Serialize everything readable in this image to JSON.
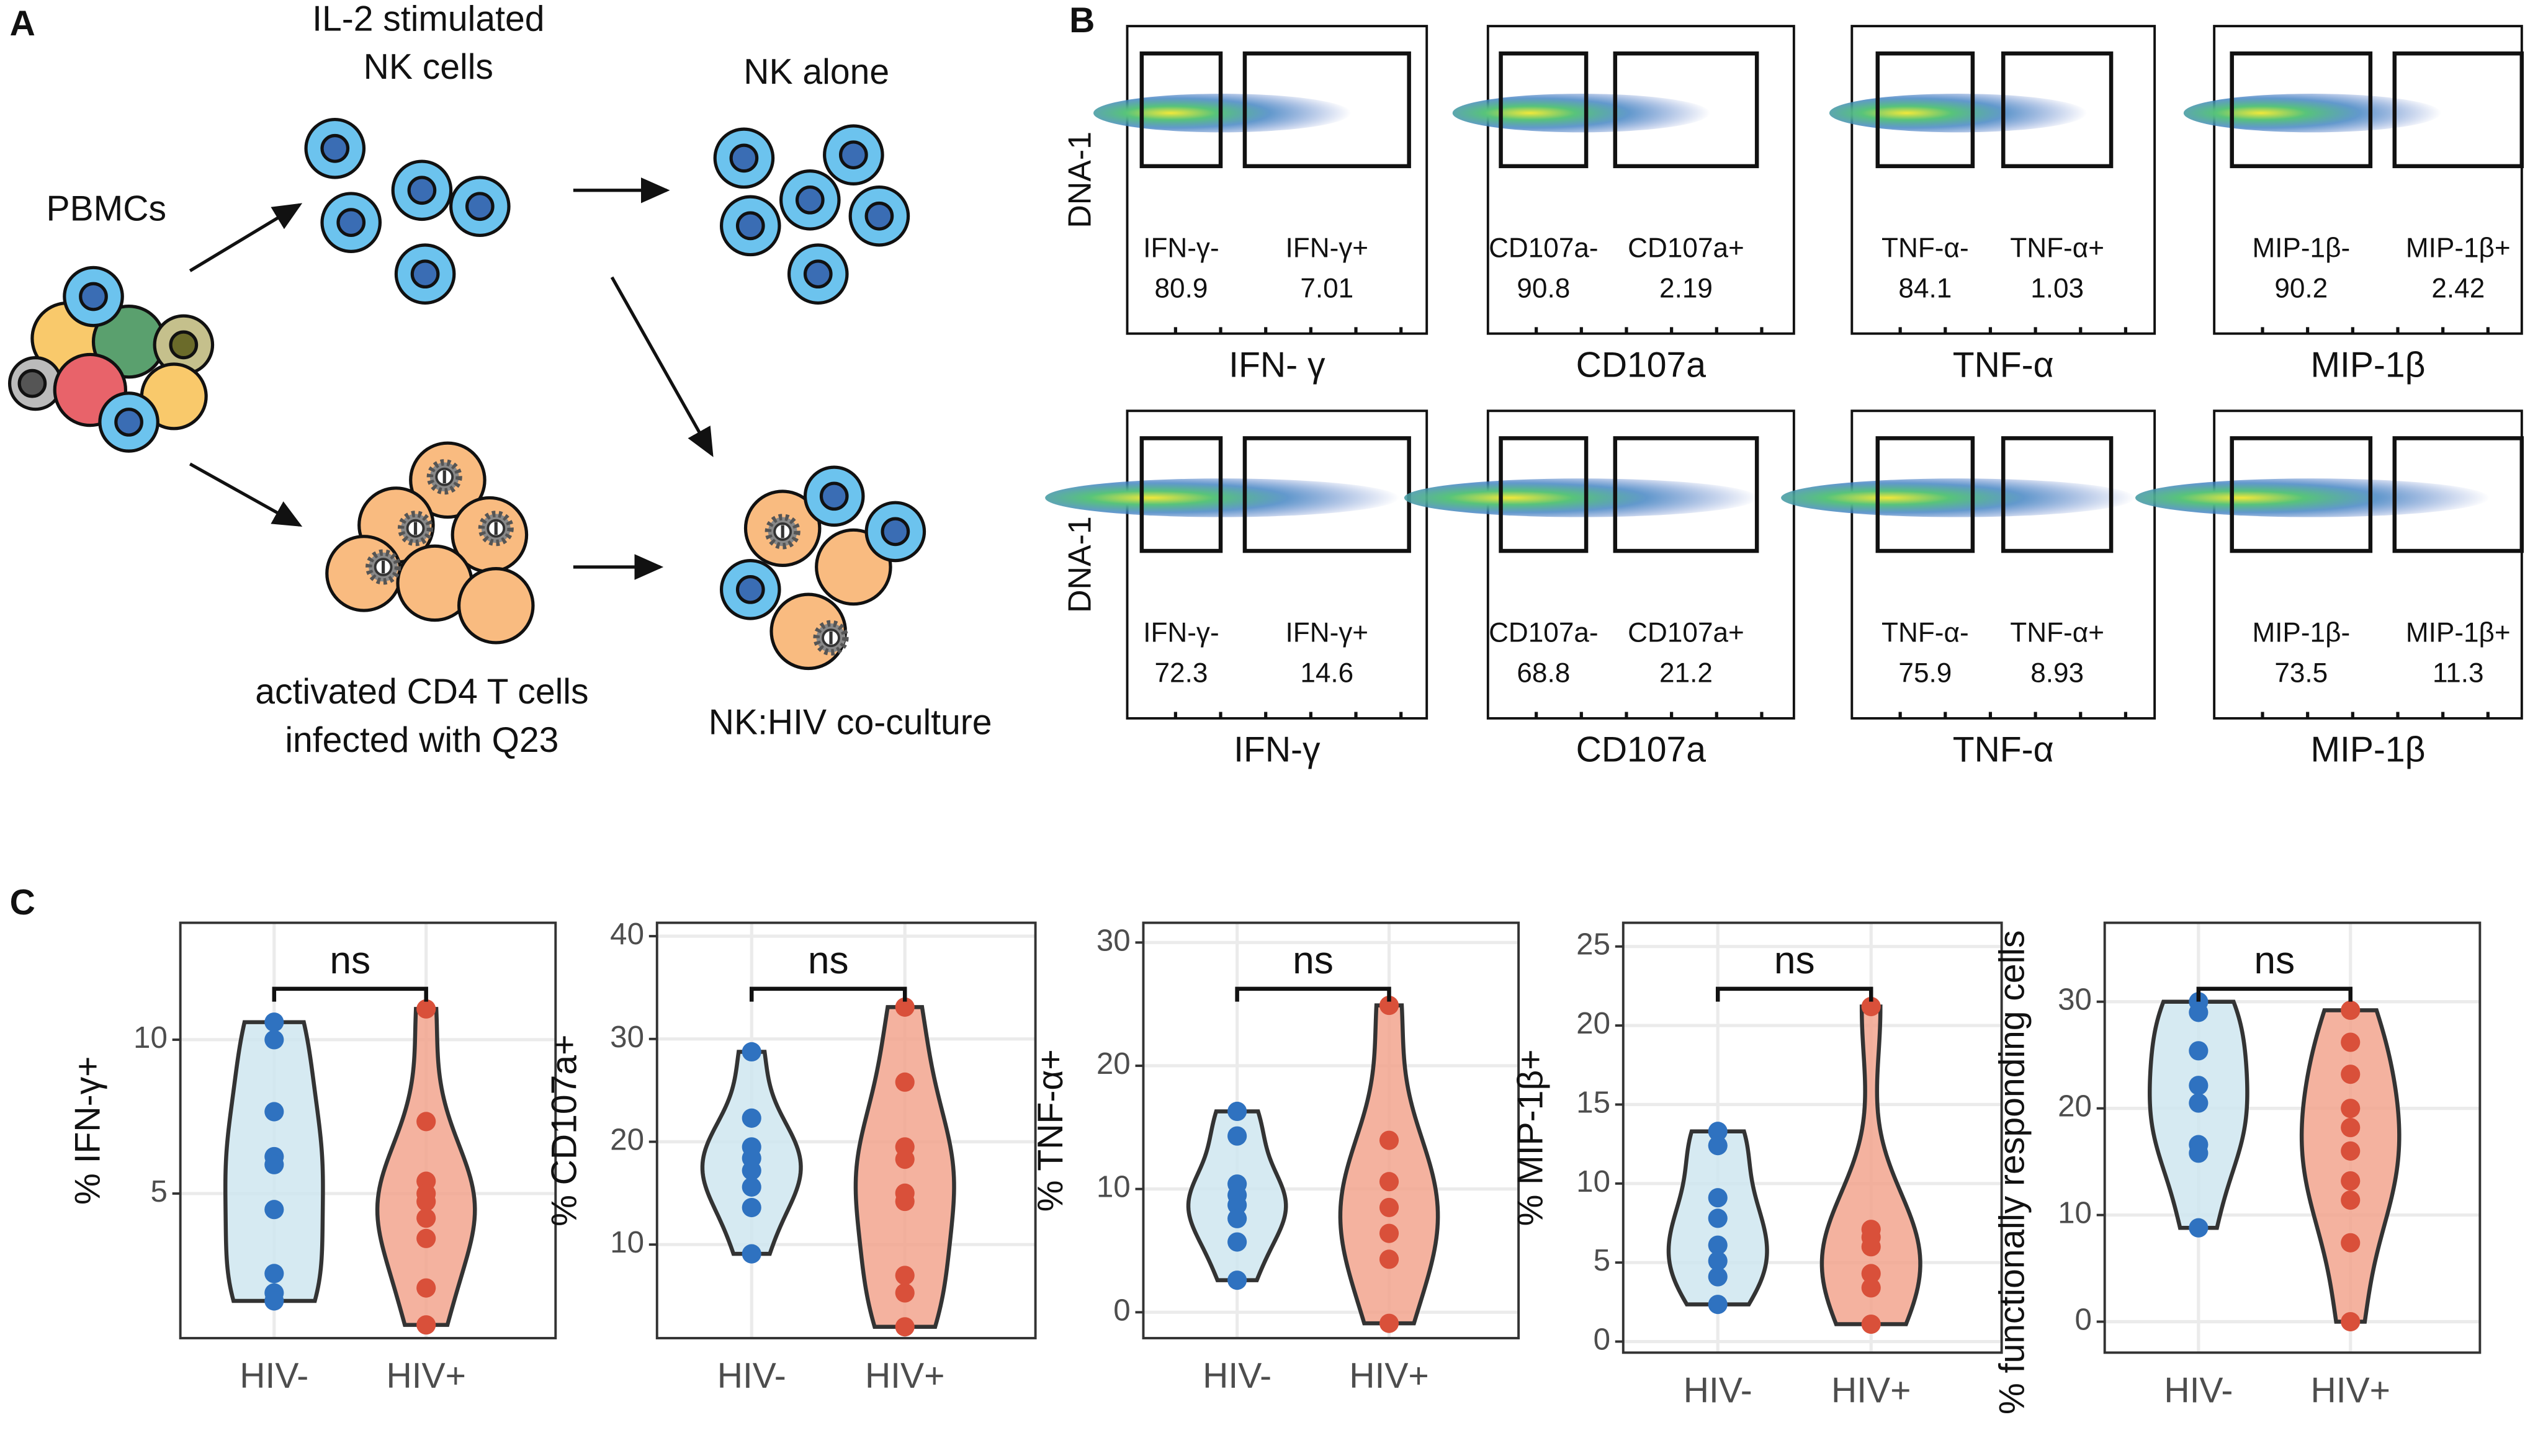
{
  "panel_labels": [
    "A",
    "B",
    "C"
  ],
  "panel_a": {
    "nk_title": [
      "IL-2 stimulated",
      "NK cells"
    ],
    "pbmc": "PBMCs",
    "nk_alone": "NK alone",
    "cd4": [
      "activated CD4 T cells",
      "infected with Q23"
    ],
    "coculture": "NK:HIV co-culture"
  },
  "panel_b": {
    "y_label": "DNA-1",
    "plots": [
      {
        "x_label": "IFN- γ",
        "gates": [
          {
            "name": "IFN-γ-",
            "value": "80.9"
          },
          {
            "name": "IFN-γ+",
            "value": "7.01"
          }
        ]
      },
      {
        "x_label": "CD107a",
        "gates": [
          {
            "name": "CD107a-",
            "value": "90.8"
          },
          {
            "name": "CD107a+",
            "value": "2.19"
          }
        ]
      },
      {
        "x_label": "TNF-α",
        "gates": [
          {
            "name": "TNF-α-",
            "value": "84.1"
          },
          {
            "name": "TNF-α+",
            "value": "1.03"
          }
        ]
      },
      {
        "x_label": "MIP-1β",
        "gates": [
          {
            "name": "MIP-1β-",
            "value": "90.2"
          },
          {
            "name": "MIP-1β+",
            "value": "2.42"
          }
        ]
      },
      {
        "x_label": "IFN-γ",
        "gates": [
          {
            "name": "IFN-γ-",
            "value": "72.3"
          },
          {
            "name": "IFN-γ+",
            "value": "14.6"
          }
        ]
      },
      {
        "x_label": "CD107a",
        "gates": [
          {
            "name": "CD107a-",
            "value": "68.8"
          },
          {
            "name": "CD107a+",
            "value": "21.2"
          }
        ]
      },
      {
        "x_label": "TNF-α",
        "gates": [
          {
            "name": "TNF-α-",
            "value": "75.9"
          },
          {
            "name": "TNF-α+",
            "value": "8.93"
          }
        ]
      },
      {
        "x_label": "MIP-1β",
        "gates": [
          {
            "name": "MIP-1β-",
            "value": "73.5"
          },
          {
            "name": "MIP-1β+",
            "value": "11.3"
          }
        ]
      }
    ]
  },
  "chart_data": [
    {
      "type": "violin",
      "ylabel": "% IFN-γ+",
      "categories": [
        "HIV-",
        "HIV+"
      ],
      "annotation": "ns",
      "grid": true,
      "ylim": [
        0.3,
        13.8
      ],
      "yticks": [
        5,
        10
      ],
      "series": [
        {
          "name": "HIV-",
          "color": "#2f72c0",
          "fill": "#cfe6f0",
          "values": [
            10.57,
            10.0,
            7.66,
            6.2,
            5.94,
            4.48,
            2.4,
            1.77,
            1.51
          ]
        },
        {
          "name": "HIV+",
          "color": "#d9503a",
          "fill": "#f2a58e",
          "values": [
            11.0,
            7.34,
            5.4,
            5.0,
            4.74,
            4.2,
            3.54,
            1.93,
            0.73
          ]
        }
      ]
    },
    {
      "type": "violin",
      "ylabel": "% CD107a+",
      "categories": [
        "HIV-",
        "HIV+"
      ],
      "annotation": "ns",
      "grid": true,
      "ylim": [
        0.9,
        41.3
      ],
      "yticks": [
        10,
        20,
        30,
        40
      ],
      "series": [
        {
          "name": "HIV-",
          "color": "#2f72c0",
          "fill": "#cfe6f0",
          "values": [
            28.75,
            22.3,
            19.5,
            18.4,
            17.2,
            15.6,
            13.6,
            9.1
          ]
        },
        {
          "name": "HIV+",
          "color": "#d9503a",
          "fill": "#f2a58e",
          "values": [
            33.1,
            25.8,
            19.5,
            18.3,
            15.0,
            14.2,
            7.0,
            5.3,
            2.0
          ]
        }
      ]
    },
    {
      "type": "violin",
      "ylabel": "% TNF-α+",
      "categories": [
        "HIV-",
        "HIV+"
      ],
      "annotation": "ns",
      "grid": true,
      "ylim": [
        -2.1,
        31.6
      ],
      "yticks": [
        0,
        10,
        20,
        30
      ],
      "series": [
        {
          "name": "HIV-",
          "color": "#2f72c0",
          "fill": "#cfe6f0",
          "values": [
            16.3,
            14.3,
            10.4,
            9.5,
            8.7,
            7.6,
            5.7,
            2.6
          ]
        },
        {
          "name": "HIV+",
          "color": "#d9503a",
          "fill": "#f2a58e",
          "values": [
            24.9,
            13.95,
            10.6,
            8.5,
            6.4,
            4.3,
            -0.9
          ]
        }
      ]
    },
    {
      "type": "violin",
      "ylabel": "% MIP-1β+",
      "categories": [
        "HIV-",
        "HIV+"
      ],
      "annotation": "ns",
      "grid": true,
      "ylim": [
        -0.7,
        26.5
      ],
      "yticks": [
        0,
        5,
        10,
        15,
        20,
        25
      ],
      "series": [
        {
          "name": "HIV-",
          "color": "#2f72c0",
          "fill": "#cfe6f0",
          "values": [
            13.3,
            12.4,
            9.1,
            7.8,
            6.1,
            5.1,
            4.1,
            2.35
          ]
        },
        {
          "name": "HIV+",
          "color": "#d9503a",
          "fill": "#f2a58e",
          "values": [
            21.2,
            7.1,
            6.6,
            6.0,
            4.3,
            3.4,
            1.1
          ]
        }
      ]
    },
    {
      "type": "violin",
      "ylabel": "% functionally responding cells",
      "categories": [
        "HIV-",
        "HIV+"
      ],
      "annotation": "ns",
      "grid": true,
      "ylim": [
        -2.9,
        37.4
      ],
      "yticks": [
        0,
        10,
        20,
        30
      ],
      "series": [
        {
          "name": "HIV-",
          "color": "#2f72c0",
          "fill": "#cfe6f0",
          "values": [
            30,
            29,
            25.4,
            22.15,
            20.5,
            16.6,
            15.8,
            8.8
          ]
        },
        {
          "name": "HIV+",
          "color": "#d9503a",
          "fill": "#f2a58e",
          "values": [
            29.2,
            26.2,
            23.2,
            20,
            18.2,
            16,
            13.2,
            11.4,
            7.4,
            0
          ]
        }
      ]
    }
  ]
}
